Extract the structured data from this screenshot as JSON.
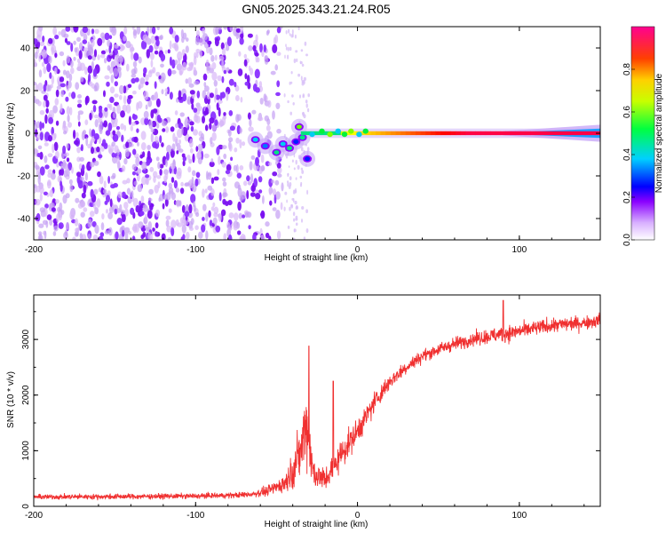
{
  "figure": {
    "title": "GN05.2025.343.21.24.R05"
  },
  "chart_data": [
    {
      "type": "heatmap",
      "title": "GN05.2025.343.21.24.R05",
      "xlabel": "Height of straight line (km)",
      "ylabel": "Frequency (Hz)",
      "xlim": [
        -200,
        150
      ],
      "ylim": [
        -50,
        50
      ],
      "xticks": [
        -200,
        -100,
        0,
        100
      ],
      "xtick_labels": [
        "-200",
        "-100",
        "0",
        "100"
      ],
      "yticks": [
        -40,
        -20,
        0,
        20,
        40
      ],
      "ytick_labels": [
        "-40",
        "-20",
        "0",
        "20",
        "40"
      ],
      "colorbar": {
        "label": "Normalized spectral amplitude",
        "range": [
          0,
          1
        ],
        "ticks": [
          0.0,
          0.2,
          0.4,
          0.6,
          0.8
        ],
        "tick_labels": [
          "0.0",
          "0.2",
          "0.4",
          "0.6",
          "0.8"
        ],
        "colormap": [
          "#ffffff",
          "#e6c8ff",
          "#8a00ff",
          "#0000ff",
          "#00c8ff",
          "#00ff00",
          "#ffff00",
          "#ff8000",
          "#ff0000",
          "#ff0080"
        ]
      },
      "features": {
        "noise_region_x": [
          -200,
          -45
        ],
        "noise_density_fade_x": [
          -90,
          -45
        ],
        "scattered_noise_x": [
          -45,
          -30
        ],
        "transition_x": [
          -70,
          -30
        ],
        "transition_blobs": [
          {
            "x": -63,
            "y": -3,
            "level": 0.45
          },
          {
            "x": -57,
            "y": -6,
            "level": 0.4
          },
          {
            "x": -50,
            "y": -9,
            "level": 0.5
          },
          {
            "x": -46,
            "y": -5,
            "level": 0.45
          },
          {
            "x": -42,
            "y": -7,
            "level": 0.5
          },
          {
            "x": -38,
            "y": -4,
            "level": 0.35
          },
          {
            "x": -36,
            "y": 3,
            "level": 0.6
          },
          {
            "x": -34,
            "y": -2,
            "level": 0.5
          },
          {
            "x": -31,
            "y": -12,
            "level": 0.35
          }
        ],
        "carrier_line": {
          "y": 0,
          "x_start": -35,
          "x_end": 150,
          "level_start": 0.55,
          "level_end": 0.95
        },
        "carrier_broadening_x": [
          90,
          150
        ],
        "carrier_broadening_halfwidth_hz": 4
      }
    },
    {
      "type": "line",
      "xlabel": "Height of straight line (km)",
      "ylabel": "SNR (10 * v/v)",
      "xlim": [
        -200,
        150
      ],
      "ylim": [
        0,
        3800
      ],
      "xticks": [
        -200,
        -100,
        0,
        100
      ],
      "xtick_labels": [
        "-200",
        "-100",
        "0",
        "100"
      ],
      "yticks": [
        0,
        1000,
        2000,
        3000
      ],
      "ytick_labels": [
        "0",
        "1000",
        "2000",
        "3000"
      ],
      "series": [
        {
          "name": "SNR",
          "color": "#f03030",
          "envelope": {
            "x": [
              -200,
              -150,
              -100,
              -75,
              -65,
              -55,
              -45,
              -40,
              -35,
              -32,
              -30,
              -28,
              -25,
              -20,
              -15,
              -10,
              -5,
              0,
              5,
              10,
              15,
              20,
              30,
              40,
              50,
              60,
              70,
              80,
              90,
              100,
              110,
              120,
              130,
              140,
              150
            ],
            "mean": [
              170,
              175,
              185,
              200,
              220,
              280,
              420,
              650,
              1000,
              1500,
              1250,
              700,
              550,
              480,
              700,
              950,
              1150,
              1350,
              1600,
              1850,
              2050,
              2250,
              2500,
              2700,
              2820,
              2920,
              3000,
              3050,
              3100,
              3150,
              3200,
              3250,
              3280,
              3300,
              3350
            ],
            "spread": [
              90,
              95,
              95,
              100,
              110,
              180,
              320,
              600,
              950,
              1250,
              1100,
              650,
              500,
              450,
              500,
              500,
              480,
              450,
              400,
              380,
              320,
              280,
              240,
              220,
              220,
              230,
              240,
              260,
              300,
              260,
              260,
              260,
              250,
              240,
              240
            ]
          },
          "peaks": [
            {
              "x": -30,
              "y": 2880
            },
            {
              "x": -15,
              "y": 2250
            },
            {
              "x": 90,
              "y": 3700
            }
          ]
        }
      ]
    }
  ]
}
